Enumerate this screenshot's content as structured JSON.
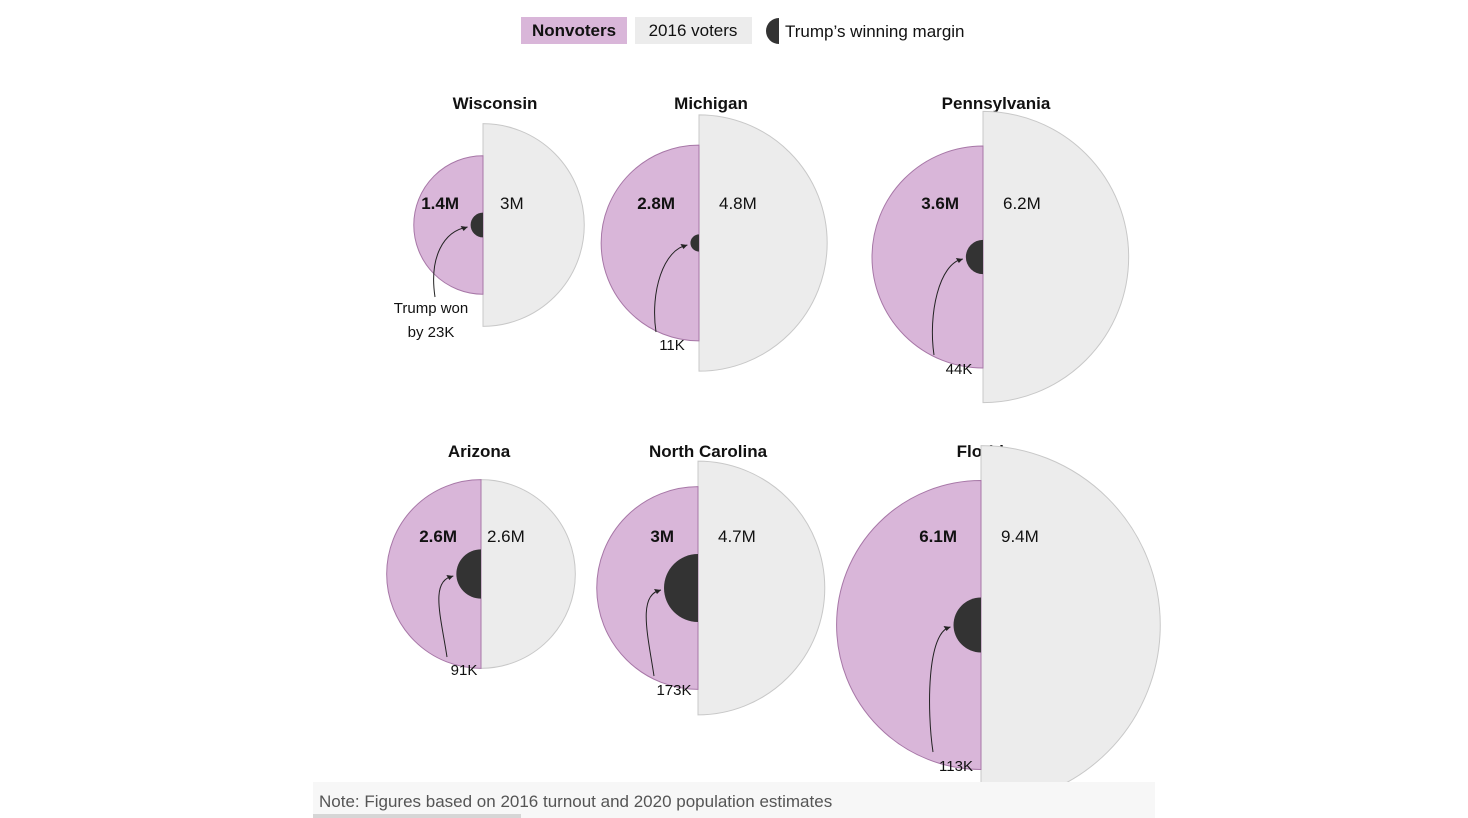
{
  "legend": {
    "nonvoters": "Nonvoters",
    "voters": "2016 voters",
    "margin": "Trump’s winning margin"
  },
  "colors": {
    "nonvoters": "#d9b6d9",
    "voters": "#ececec",
    "margin": "#333333",
    "stroke": "#c8c8c8"
  },
  "note": "Note: Figures based on 2016 turnout and 2020 population estimates",
  "chart_data": {
    "type": "semicircle-comparison",
    "series": [
      {
        "name": "Nonvoters"
      },
      {
        "name": "2016 voters"
      },
      {
        "name": "Trump’s winning margin"
      }
    ],
    "states": [
      {
        "name": "Wisconsin",
        "nonvoters": 1.4,
        "nonvoters_label": "1.4M",
        "voters": 3.0,
        "voters_label": "3M",
        "margin": 23,
        "margin_label": "23K",
        "annotation": "Trump won\nby 23K"
      },
      {
        "name": "Michigan",
        "nonvoters": 2.8,
        "nonvoters_label": "2.8M",
        "voters": 4.8,
        "voters_label": "4.8M",
        "margin": 11,
        "margin_label": "11K",
        "annotation": "11K"
      },
      {
        "name": "Pennsylvania",
        "nonvoters": 3.6,
        "nonvoters_label": "3.6M",
        "voters": 6.2,
        "voters_label": "6.2M",
        "margin": 44,
        "margin_label": "44K",
        "annotation": "44K"
      },
      {
        "name": "Arizona",
        "nonvoters": 2.6,
        "nonvoters_label": "2.6M",
        "voters": 2.6,
        "voters_label": "2.6M",
        "margin": 91,
        "margin_label": "91K",
        "annotation": "91K"
      },
      {
        "name": "North Carolina",
        "nonvoters": 3.0,
        "nonvoters_label": "3M",
        "voters": 4.7,
        "voters_label": "4.7M",
        "margin": 173,
        "margin_label": "173K",
        "annotation": "173K"
      },
      {
        "name": "Florida",
        "nonvoters": 6.1,
        "nonvoters_label": "6.1M",
        "voters": 9.4,
        "voters_label": "9.4M",
        "margin": 113,
        "margin_label": "113K",
        "annotation": "113K"
      }
    ]
  }
}
